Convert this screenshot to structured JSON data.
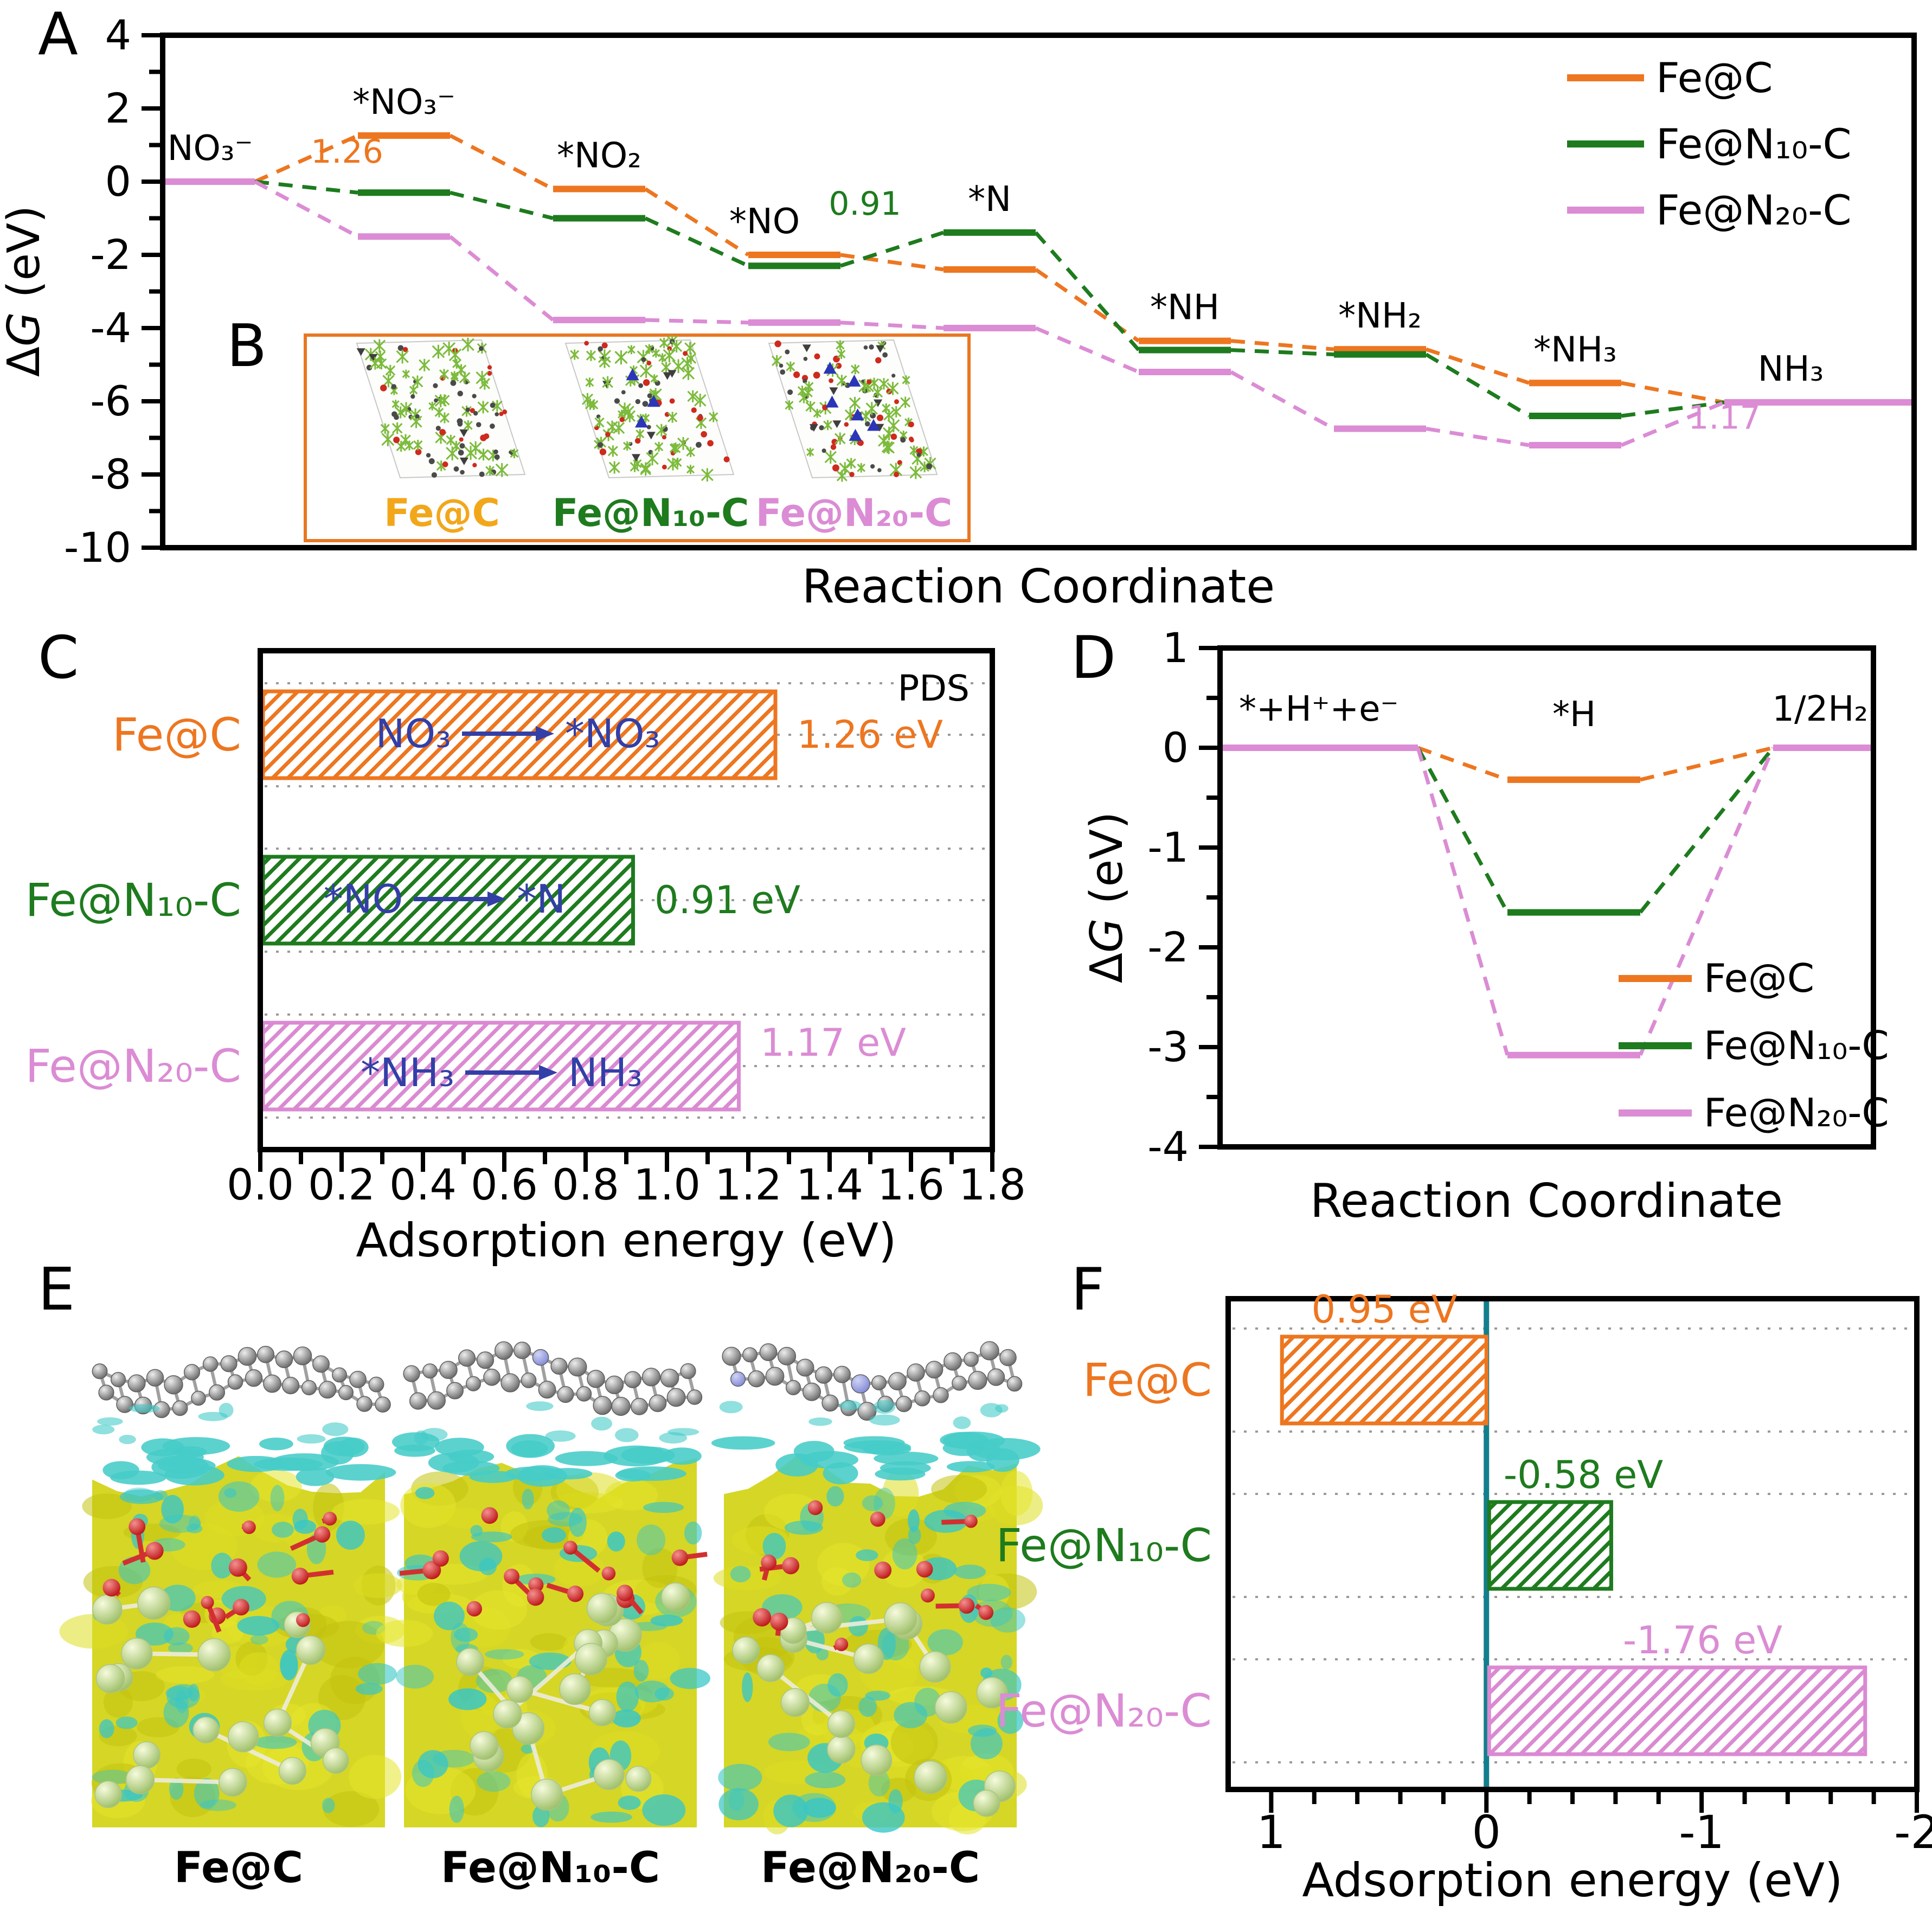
{
  "panel_letters": {
    "a": "A",
    "b": "B",
    "c": "C",
    "d": "D",
    "e": "E",
    "f": "F"
  },
  "colors": {
    "orange": "#ED7620",
    "green": "#1E7B1E",
    "pink": "#DB8CD4",
    "pink_bar": "#DA8AD2",
    "blue_annotation": "#333FA6",
    "teal_zero_line": "#127F8C",
    "inset_border": "#E87722",
    "gold_label": "#F2A71B",
    "gridline": "#9A9A9A"
  },
  "chart_data": [
    {
      "id": "A",
      "type": "line",
      "xlabel": "Reaction Coordinate",
      "ylabel_prefix": "Δ",
      "ylabel_italic": "G",
      "ylabel_suffix": " (eV)",
      "ylim": [
        -10,
        4
      ],
      "yticks": [
        4,
        2,
        0,
        -2,
        -4,
        -6,
        -8,
        -10
      ],
      "categories": [
        "NO₃⁻",
        "*NO₃⁻",
        "*NO₂",
        "*NO",
        "*N",
        "*NH",
        "*NH₂",
        "*NH₃",
        "NH₃"
      ],
      "series": [
        {
          "name": "Fe@C",
          "color": "#ED7620",
          "values": [
            0,
            1.26,
            -0.2,
            -2.0,
            -2.4,
            -4.35,
            -4.58,
            -5.5,
            -6.03
          ]
        },
        {
          "name": "Fe@N₁₀-C",
          "color": "#1E7B1E",
          "values": [
            0,
            -0.3,
            -1.0,
            -2.3,
            -1.39,
            -4.6,
            -4.72,
            -6.4,
            -6.03
          ]
        },
        {
          "name": "Fe@N₂₀-C",
          "color": "#DB8CD4",
          "values": [
            0,
            -1.5,
            -3.78,
            -3.85,
            -4.0,
            -5.2,
            -6.75,
            -7.2,
            -6.03
          ]
        }
      ],
      "annotations": [
        {
          "text": "1.26",
          "color": "#ED7620"
        },
        {
          "text": "0.91",
          "color": "#1E7B1E"
        },
        {
          "text": "1.17",
          "color": "#DB8CD4"
        }
      ],
      "legend_position": "top-right",
      "grid": false
    },
    {
      "id": "C",
      "type": "bar",
      "orientation": "horizontal",
      "corner_label": "PDS",
      "xlabel": "Adsorption energy (eV)",
      "categories": [
        "Fe@C",
        "Fe@N₁₀-C",
        "Fe@N₂₀-C"
      ],
      "values": [
        1.26,
        0.91,
        1.17
      ],
      "value_labels": [
        "1.26 eV",
        "0.91 eV",
        "1.17 eV"
      ],
      "bar_annotations": [
        {
          "from": "NO₃",
          "to": "*NO₃"
        },
        {
          "from": "*NO",
          "to": "*N"
        },
        {
          "from": "*NH₃",
          "to": "NH₃"
        }
      ],
      "colors": [
        "#ED7620",
        "#1E7B1E",
        "#DA8AD2"
      ],
      "xlim": [
        0,
        1.8
      ],
      "xticks": [
        "0.0",
        "0.2",
        "0.4",
        "0.6",
        "0.8",
        "1.0",
        "1.2",
        "1.4",
        "1.6",
        "1.8"
      ],
      "grid": "dotted"
    },
    {
      "id": "D",
      "type": "line",
      "xlabel": "Reaction Coordinate",
      "ylabel_prefix": "Δ",
      "ylabel_italic": "G",
      "ylabel_suffix": " (eV)",
      "ylim": [
        -4,
        1
      ],
      "yticks": [
        1,
        0,
        -1,
        -2,
        -3,
        -4
      ],
      "categories": [
        "*+H⁺+e⁻",
        "*H",
        "1/2H₂"
      ],
      "series": [
        {
          "name": "Fe@C",
          "color": "#ED7620",
          "values": [
            0,
            -0.32,
            0
          ]
        },
        {
          "name": "Fe@N₁₀-C",
          "color": "#1E7B1E",
          "values": [
            0,
            -1.65,
            0
          ]
        },
        {
          "name": "Fe@N₂₀-C",
          "color": "#DB8CD4",
          "values": [
            0,
            -3.08,
            0
          ]
        }
      ],
      "legend_position": "bottom-right",
      "grid": false
    },
    {
      "id": "F",
      "type": "bar",
      "orientation": "horizontal",
      "xlabel": "Adsorption energy (eV)",
      "categories": [
        "Fe@C",
        "Fe@N₁₀-C",
        "Fe@N₂₀-C"
      ],
      "values": [
        0.95,
        -0.58,
        -1.76
      ],
      "value_labels": [
        "0.95 eV",
        "-0.58 eV",
        "-1.76 eV"
      ],
      "colors": [
        "#ED7620",
        "#1E7B1E",
        "#DA8AD2"
      ],
      "xlim": [
        1.2,
        -2
      ],
      "xticks": [
        "1",
        "0",
        "-1",
        "-2"
      ],
      "xtick_values": [
        1,
        0,
        -1,
        -2
      ],
      "zero_line": true,
      "axis_reversed": true,
      "grid": "dotted"
    }
  ],
  "panel_b": {
    "structure_labels": [
      {
        "text": "Fe@C",
        "color": "#F2A71B"
      },
      {
        "text": "Fe@N₁₀-C",
        "color": "#1E7B1E"
      },
      {
        "text": "Fe@N₂₀-C",
        "color": "#DB8CD4"
      }
    ]
  },
  "panel_e": {
    "structure_labels": [
      "Fe@C",
      "Fe@N₁₀-C",
      "Fe@N₂₀-C"
    ]
  }
}
